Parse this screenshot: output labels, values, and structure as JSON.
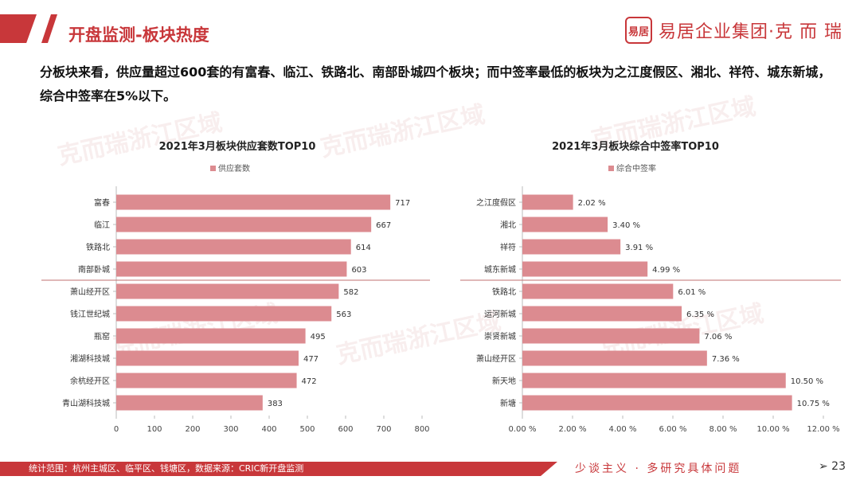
{
  "header": {
    "title": "开盘监测-板块热度",
    "brand_logo_text": "易居",
    "brand_name": "易居企业集团·克 而 瑞"
  },
  "summary": "分板块来看，供应量超过600套的有富春、临江、铁路北、南部卧城四个板块；而中签率最低的板块为之江度假区、湘北、祥符、城东新城，综合中签率在5%以下。",
  "watermark": "克而瑞浙江区域",
  "colors": {
    "accent": "#c8373a",
    "bar": "#dc8b90",
    "divider": "#c07070"
  },
  "chart_data": [
    {
      "type": "bar",
      "orientation": "horizontal",
      "title": "2021年3月板块供应套数TOP10",
      "legend": "供应套数",
      "categories": [
        "富春",
        "临江",
        "铁路北",
        "南部卧城",
        "萧山经开区",
        "钱江世纪城",
        "瓶窑",
        "湘湖科技城",
        "余杭经开区",
        "青山湖科技城"
      ],
      "values": [
        717,
        667,
        614,
        603,
        582,
        563,
        495,
        477,
        472,
        383
      ],
      "data_labels": [
        "717",
        "667",
        "614",
        "603",
        "582",
        "563",
        "495",
        "477",
        "472",
        "383"
      ],
      "xlim": [
        0,
        800
      ],
      "ticks": [
        "0",
        "100",
        "200",
        "300",
        "400",
        "500",
        "600",
        "700",
        "800"
      ],
      "divider_after_index": 3
    },
    {
      "type": "bar",
      "orientation": "horizontal",
      "title": "2021年3月板块综合中签率TOP10",
      "legend": "综合中签率",
      "categories": [
        "之江度假区",
        "湘北",
        "祥符",
        "城东新城",
        "铁路北",
        "运河新城",
        "崇贤新城",
        "萧山经开区",
        "新天地",
        "新塘"
      ],
      "values": [
        2.02,
        3.4,
        3.91,
        4.99,
        6.01,
        6.35,
        7.06,
        7.36,
        10.5,
        10.75
      ],
      "data_labels": [
        "2.02 %",
        "3.40 %",
        "3.91 %",
        "4.99 %",
        "6.01 %",
        "6.35 %",
        "7.06 %",
        "7.36 %",
        "10.50 %",
        "10.75 %"
      ],
      "xlim": [
        0,
        12
      ],
      "ticks": [
        "0.00 %",
        "2.00 %",
        "4.00 %",
        "6.00 %",
        "8.00 %",
        "10.00 %",
        "12.00 %"
      ],
      "divider_after_index": 3
    }
  ],
  "footer": {
    "note": "统计范围：杭州主城区、临平区、钱塘区，数据来源：CRIC新开盘监测",
    "slogan": "少谈主义 · 多研究具体问题",
    "page": "➢ 23"
  }
}
